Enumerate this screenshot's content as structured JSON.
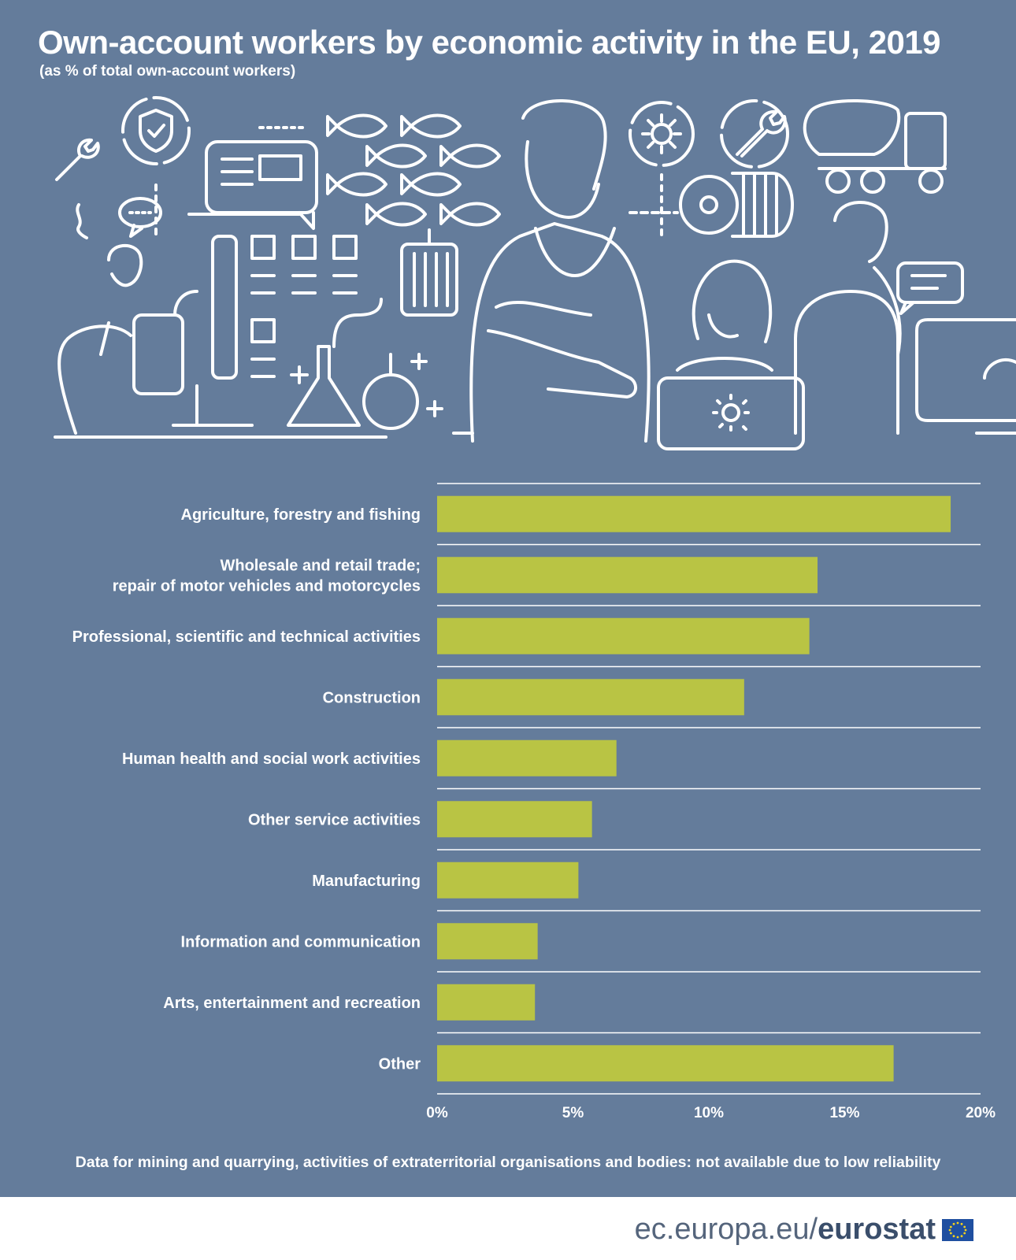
{
  "title": "Own-account workers by economic activity in the EU, 2019",
  "subtitle": "(as % of total own-account workers)",
  "footnote": "Data for mining and quarrying, activities of extraterritorial organisations and bodies: not available due to low reliability",
  "brand": {
    "domain": "ec.europa.eu/",
    "name": "eurostat"
  },
  "colors": {
    "background": "#647c9b",
    "bar": "#b9c444",
    "text": "#ffffff",
    "gridline": "#ffffff"
  },
  "chart_data": {
    "type": "bar",
    "orientation": "horizontal",
    "title": "",
    "xlabel": "",
    "ylabel": "",
    "categories": [
      [
        "Agriculture, forestry and fishing"
      ],
      [
        "Wholesale and retail trade;",
        "repair of motor vehicles and motorcycles"
      ],
      [
        "Professional, scientific and technical activities"
      ],
      [
        "Construction"
      ],
      [
        "Human health and social work activities"
      ],
      [
        "Other service activities"
      ],
      [
        "Manufacturing"
      ],
      [
        "Information and communication"
      ],
      [
        "Arts, entertainment and recreation"
      ],
      [
        "Other"
      ]
    ],
    "values": [
      18.9,
      14.0,
      13.7,
      11.3,
      6.6,
      5.7,
      5.2,
      3.7,
      3.6,
      16.8
    ],
    "xlim": [
      0,
      20
    ],
    "ticks": [
      0,
      5,
      10,
      15,
      20
    ],
    "tick_labels": [
      "0%",
      "5%",
      "10%",
      "15%",
      "20%"
    ],
    "grid": "horizontal separators"
  }
}
